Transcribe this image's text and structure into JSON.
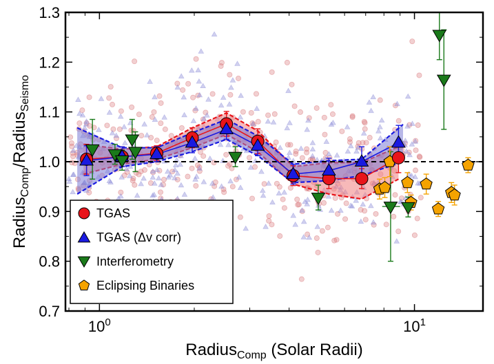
{
  "chart_data": {
    "type": "scatter",
    "title": "",
    "xlabel": {
      "main": "Radius",
      "sub": "Comp",
      "suffix": " (Solar Radii)"
    },
    "ylabel": {
      "num_main": "Radius",
      "num_sub": "Comp",
      "sep": "/",
      "den_main": "Radius",
      "den_sub": "Seismo"
    },
    "xscale": "log",
    "xlim": [
      0.78,
      16.5
    ],
    "ylim": [
      0.7,
      1.3
    ],
    "x_ticks": [
      {
        "value": 1,
        "base": "10",
        "exp": "0"
      },
      {
        "value": 10,
        "base": "10",
        "exp": "1"
      }
    ],
    "y_ticks": [
      "0.7",
      "0.8",
      "0.9",
      "1.0",
      "1.1",
      "1.2",
      "1.3"
    ],
    "reference_line": {
      "y": 1.0,
      "style": "dashed",
      "color": "#000000"
    },
    "legend": {
      "position": "lower-left",
      "entries": [
        {
          "label": "TGAS",
          "marker": "circle",
          "color": "#e8141a"
        },
        {
          "label": "TGAS (Δv corr)",
          "marker": "triangle-up",
          "color": "#1a1ae0"
        },
        {
          "label": "Interferometry",
          "marker": "triangle-down",
          "color": "#1a7a1a"
        },
        {
          "label": "Eclipsing Binaries",
          "marker": "pentagon",
          "color": "#f5a300"
        }
      ]
    },
    "colors": {
      "tgas": "#e8141a",
      "tgas_band": "#f08080",
      "dnu": "#1a1ae0",
      "dnu_band": "#7b7bd6",
      "interf": "#1a7a1a",
      "eb": "#f5a300",
      "scatter_red": "#d9787c",
      "scatter_blue": "#8a8ad8"
    },
    "series": [
      {
        "name": "TGAS",
        "points": [
          {
            "x": 0.91,
            "y": 1.005,
            "err": 0.03
          },
          {
            "x": 1.18,
            "y": 1.01,
            "err": 0.02
          },
          {
            "x": 1.52,
            "y": 1.017,
            "err": 0.015
          },
          {
            "x": 1.97,
            "y": 1.048,
            "err": 0.02
          },
          {
            "x": 2.53,
            "y": 1.076,
            "err": 0.025
          },
          {
            "x": 3.18,
            "y": 1.041,
            "err": 0.025
          },
          {
            "x": 4.12,
            "y": 0.972,
            "err": 0.02
          },
          {
            "x": 5.35,
            "y": 0.966,
            "err": 0.02
          },
          {
            "x": 6.8,
            "y": 0.966,
            "err": 0.02
          },
          {
            "x": 8.9,
            "y": 1.008,
            "err": 0.03
          }
        ]
      },
      {
        "name": "TGAS (Δv corr)",
        "points": [
          {
            "x": 0.91,
            "y": 1.002,
            "err": 0.03
          },
          {
            "x": 1.18,
            "y": 1.01,
            "err": 0.02
          },
          {
            "x": 1.52,
            "y": 1.015,
            "err": 0.015
          },
          {
            "x": 1.97,
            "y": 1.038,
            "err": 0.02
          },
          {
            "x": 2.53,
            "y": 1.065,
            "err": 0.02
          },
          {
            "x": 3.18,
            "y": 1.032,
            "err": 0.02
          },
          {
            "x": 4.12,
            "y": 0.975,
            "err": 0.02
          },
          {
            "x": 5.35,
            "y": 0.982,
            "err": 0.025
          },
          {
            "x": 6.8,
            "y": 1.0,
            "err": 0.03
          },
          {
            "x": 8.9,
            "y": 1.038,
            "err": 0.035
          }
        ]
      },
      {
        "name": "Interferometry",
        "points": [
          {
            "x": 0.95,
            "y": 1.025,
            "err": 0.06
          },
          {
            "x": 1.12,
            "y": 1.015,
            "err": 0.02
          },
          {
            "x": 1.18,
            "y": 1.003,
            "err": 0.02
          },
          {
            "x": 1.27,
            "y": 1.045,
            "err": 0.04
          },
          {
            "x": 1.3,
            "y": 1.02,
            "err": 0.04
          },
          {
            "x": 2.7,
            "y": 1.01,
            "err": 0.02
          },
          {
            "x": 4.95,
            "y": 0.928,
            "err": 0.025
          },
          {
            "x": 8.4,
            "y": 0.91,
            "err": 0.11
          },
          {
            "x": 9.55,
            "y": 0.909,
            "err": 0.02
          },
          {
            "x": 12.0,
            "y": 1.255,
            "err": 0.05
          },
          {
            "x": 12.4,
            "y": 1.165,
            "err": 0.1
          }
        ]
      },
      {
        "name": "Eclipsing Binaries",
        "points": [
          {
            "x": 7.75,
            "y": 0.945,
            "err": 0.02
          },
          {
            "x": 8.05,
            "y": 0.948,
            "err": 0.02
          },
          {
            "x": 8.35,
            "y": 1.0,
            "err": 0.03
          },
          {
            "x": 9.5,
            "y": 0.958,
            "err": 0.02
          },
          {
            "x": 9.75,
            "y": 0.918,
            "err": 0.015
          },
          {
            "x": 10.9,
            "y": 0.955,
            "err": 0.02
          },
          {
            "x": 11.9,
            "y": 0.905,
            "err": 0.015
          },
          {
            "x": 13.1,
            "y": 0.938,
            "err": 0.02
          },
          {
            "x": 13.4,
            "y": 0.933,
            "err": 0.02
          },
          {
            "x": 14.8,
            "y": 0.993,
            "err": 0.015
          }
        ]
      }
    ],
    "bands": [
      {
        "name": "TGAS",
        "x": [
          0.89,
          1.18,
          1.52,
          1.97,
          2.53,
          3.18,
          4.12,
          5.35,
          6.8,
          8.9
        ],
        "lower": [
          0.975,
          0.995,
          1.005,
          1.028,
          1.055,
          1.02,
          0.955,
          0.935,
          0.925,
          0.965
        ],
        "upper": [
          1.035,
          1.025,
          1.03,
          1.068,
          1.098,
          1.062,
          0.99,
          0.998,
          0.998,
          1.03
        ]
      },
      {
        "name": "TGAS (Δv corr)",
        "x": [
          0.85,
          1.18,
          1.52,
          1.97,
          2.53,
          3.18,
          4.12,
          5.35,
          6.8,
          9.2
        ],
        "lower": [
          0.935,
          0.99,
          1.0,
          1.02,
          1.045,
          1.012,
          0.958,
          0.962,
          0.972,
          1.0
        ],
        "upper": [
          1.068,
          1.028,
          1.028,
          1.058,
          1.085,
          1.052,
          0.995,
          1.002,
          1.005,
          1.075
        ]
      }
    ],
    "background_scatter": [
      {
        "name": "TGAS stars",
        "marker": "circle",
        "count": 320,
        "seed": 7
      },
      {
        "name": "Δv corr stars",
        "marker": "triangle-up",
        "count": 320,
        "seed": 19
      }
    ]
  }
}
